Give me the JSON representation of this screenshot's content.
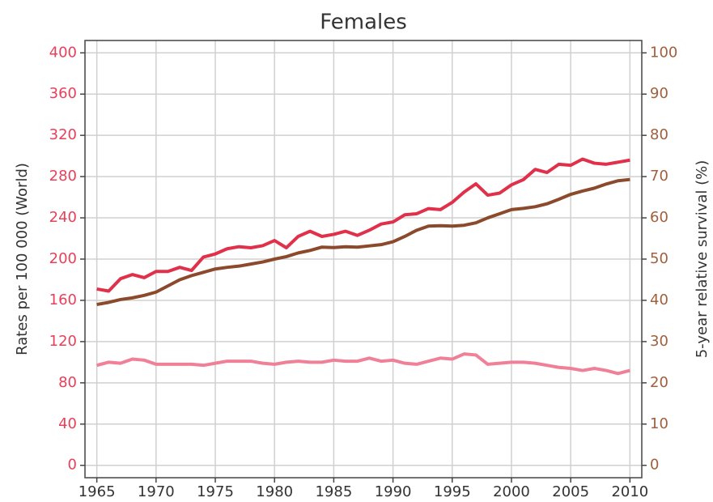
{
  "chart_data": {
    "type": "line",
    "title": "Females",
    "ylabel": "Rates per 100 000 (World)",
    "y2label": "5-year relative survival (%)",
    "x": [
      1965,
      1966,
      1967,
      1968,
      1969,
      1970,
      1971,
      1972,
      1973,
      1974,
      1975,
      1976,
      1977,
      1978,
      1979,
      1980,
      1981,
      1982,
      1983,
      1984,
      1985,
      1986,
      1987,
      1988,
      1989,
      1990,
      1991,
      1992,
      1993,
      1994,
      1995,
      1996,
      1997,
      1998,
      1999,
      2000,
      2001,
      2002,
      2003,
      2004,
      2005,
      2006,
      2007,
      2008,
      2009,
      2010
    ],
    "xlim": [
      1964,
      2011
    ],
    "xticks": [
      1965,
      1970,
      1975,
      1980,
      1985,
      1990,
      1995,
      2000,
      2005,
      2010
    ],
    "ylim": [
      -12,
      412
    ],
    "yticks": [
      0,
      40,
      80,
      120,
      160,
      200,
      240,
      280,
      320,
      360,
      400
    ],
    "y2lim": [
      -3,
      103
    ],
    "y2ticks": [
      0,
      10,
      20,
      30,
      40,
      50,
      60,
      70,
      80,
      90,
      100
    ],
    "grid": true,
    "ytick_color": "#e8405a",
    "y2tick_color": "#a0603e",
    "series": [
      {
        "color": "#e0304a",
        "values": [
          171,
          169,
          181,
          185,
          182,
          188,
          188,
          192,
          189,
          202,
          205,
          210,
          212,
          211,
          213,
          218,
          211,
          222,
          227,
          222,
          224,
          227,
          223,
          228,
          234,
          236,
          243,
          244,
          249,
          248,
          255,
          265,
          273,
          262,
          264,
          272,
          277,
          287,
          284,
          292,
          291,
          297,
          293,
          292,
          294,
          296
        ]
      },
      {
        "color": "#8b4a2b",
        "axis": "y2",
        "values": [
          39,
          39.5,
          40.2,
          40.6,
          41.2,
          42,
          43.5,
          45,
          46,
          46.8,
          47.6,
          48,
          48.3,
          48.8,
          49.3,
          50,
          50.6,
          51.5,
          52.1,
          52.9,
          52.8,
          53,
          52.9,
          53.2,
          53.5,
          54.2,
          55.5,
          57,
          58,
          58.1,
          58,
          58.2,
          58.8,
          60,
          61,
          62,
          62.3,
          62.7,
          63.4,
          64.5,
          65.7,
          66.5,
          67.2,
          68.2,
          69,
          69.3
        ]
      },
      {
        "color": "#f08098",
        "values": [
          97,
          100,
          99,
          103,
          102,
          98,
          98,
          98,
          98,
          97,
          99,
          101,
          101,
          101,
          99,
          98,
          100,
          101,
          100,
          100,
          102,
          101,
          101,
          104,
          101,
          102,
          99,
          98,
          101,
          104,
          103,
          108,
          107,
          98,
          99,
          100,
          100,
          99,
          97,
          95,
          94,
          92,
          94,
          92,
          89,
          92
        ]
      }
    ]
  }
}
